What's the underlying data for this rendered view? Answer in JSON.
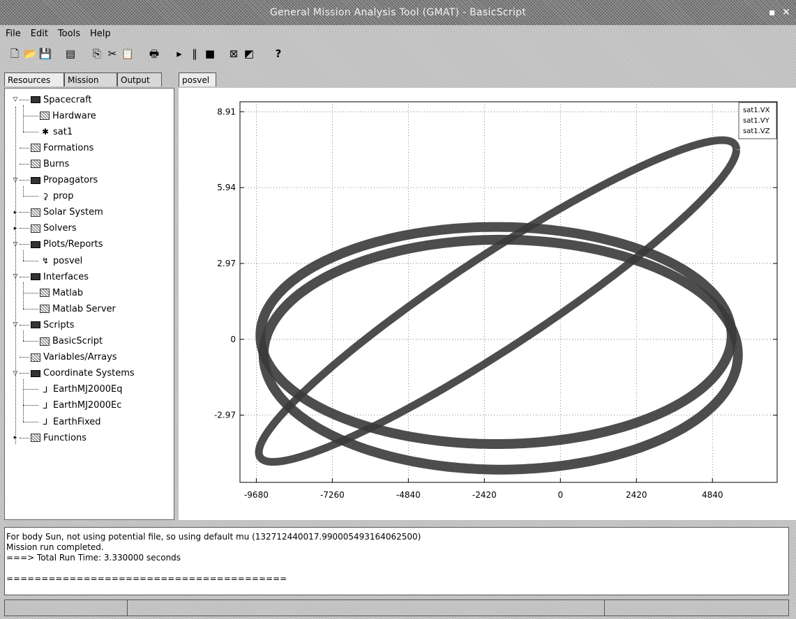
{
  "window": {
    "title": "General Mission Analysis Tool (GMAT) - BasicScript",
    "minimize_glyph": "▪",
    "close_glyph": "✕"
  },
  "menu": [
    "File",
    "Edit",
    "Tools",
    "Help"
  ],
  "toolbar": [
    {
      "icon": "new-file-icon",
      "glyph": "🗋"
    },
    {
      "icon": "open-folder-icon",
      "glyph": "📂"
    },
    {
      "icon": "save-icon",
      "glyph": "💾"
    },
    {
      "icon": "script-icon",
      "glyph": "▤"
    },
    {
      "icon": "copy-icon",
      "glyph": "⎘"
    },
    {
      "icon": "cut-icon",
      "glyph": "✂"
    },
    {
      "icon": "paste-icon",
      "glyph": "📋"
    },
    {
      "icon": "print-icon",
      "glyph": "🖶"
    },
    {
      "icon": "run-icon",
      "glyph": "▸"
    },
    {
      "icon": "pause-icon",
      "glyph": "‖"
    },
    {
      "icon": "stop-icon",
      "glyph": "■"
    },
    {
      "icon": "close-all-icon",
      "glyph": "⊠"
    },
    {
      "icon": "clear-icon",
      "glyph": "◩"
    },
    {
      "icon": "help-icon",
      "glyph": "?"
    }
  ],
  "left_tabs": [
    "Resources",
    "Mission",
    "Output"
  ],
  "active_left_tab": "Resources",
  "plot_tab": "posvel",
  "tree": [
    {
      "label": "Spacecraft",
      "level": 0,
      "state": "expanded",
      "icon": "folder-icon"
    },
    {
      "label": "Hardware",
      "level": 1,
      "state": "none",
      "icon": "hardware-icon"
    },
    {
      "label": "sat1",
      "level": 1,
      "state": "none",
      "icon": "satellite-icon"
    },
    {
      "label": "Formations",
      "level": 0,
      "state": "none",
      "icon": "formation-icon"
    },
    {
      "label": "Burns",
      "level": 0,
      "state": "none",
      "icon": "burn-icon"
    },
    {
      "label": "Propagators",
      "level": 0,
      "state": "expanded",
      "icon": "folder-icon"
    },
    {
      "label": "prop",
      "level": 1,
      "state": "none",
      "icon": "propagator-icon"
    },
    {
      "label": "Solar System",
      "level": 0,
      "state": "collapsed",
      "icon": "solar-system-icon"
    },
    {
      "label": "Solvers",
      "level": 0,
      "state": "collapsed",
      "icon": "solver-icon"
    },
    {
      "label": "Plots/Reports",
      "level": 0,
      "state": "expanded",
      "icon": "folder-icon"
    },
    {
      "label": "posvel",
      "level": 1,
      "state": "none",
      "icon": "xy-plot-icon"
    },
    {
      "label": "Interfaces",
      "level": 0,
      "state": "expanded",
      "icon": "folder-icon"
    },
    {
      "label": "Matlab",
      "level": 1,
      "state": "none",
      "icon": "matlab-icon"
    },
    {
      "label": "Matlab Server",
      "level": 1,
      "state": "none",
      "icon": "matlab-server-icon"
    },
    {
      "label": "Scripts",
      "level": 0,
      "state": "expanded",
      "icon": "folder-icon"
    },
    {
      "label": "BasicScript",
      "level": 1,
      "state": "none",
      "icon": "script-file-icon"
    },
    {
      "label": "Variables/Arrays",
      "level": 0,
      "state": "none",
      "icon": "variables-icon"
    },
    {
      "label": "Coordinate Systems",
      "level": 0,
      "state": "expanded",
      "icon": "folder-icon"
    },
    {
      "label": "EarthMJ2000Eq",
      "level": 1,
      "state": "none",
      "icon": "axes-icon"
    },
    {
      "label": "EarthMJ2000Ec",
      "level": 1,
      "state": "none",
      "icon": "axes-icon"
    },
    {
      "label": "EarthFixed",
      "level": 1,
      "state": "none",
      "icon": "axes-icon"
    },
    {
      "label": "Functions",
      "level": 0,
      "state": "collapsed",
      "icon": "functions-icon"
    }
  ],
  "chart_data": {
    "type": "line",
    "title": "",
    "xlabel": "",
    "ylabel": "",
    "xticks": [
      "-9680",
      "-7260",
      "-4840",
      "-2420",
      "0",
      "2420",
      "4840"
    ],
    "yticks": [
      "8.91",
      "5.94",
      "2.97",
      "0",
      "-2.97"
    ],
    "xlim": [
      -10200,
      6900
    ],
    "ylim": [
      -5.6,
      9.3
    ],
    "grid": true,
    "legend": {
      "position": "top-right",
      "entries": [
        "sat1.VX",
        "sat1.VY",
        "sat1.VZ"
      ]
    },
    "series": [
      {
        "name": "sat1.VX",
        "curve": "tilted-ellipse",
        "x_range": [
          -9600,
          5600
        ],
        "y_range": [
          -4.8,
          7.8
        ],
        "color": "#3a3a3a"
      },
      {
        "name": "sat1.VY",
        "curve": "wide-ellipse",
        "x_range": [
          -9550,
          5450
        ],
        "y_range": [
          -4.1,
          4.4
        ],
        "color": "#3a3a3a"
      },
      {
        "name": "sat1.VZ",
        "curve": "wide-ellipse",
        "x_range": [
          -9450,
          5650
        ],
        "y_range": [
          -5.1,
          3.9
        ],
        "color": "#3a3a3a"
      }
    ]
  },
  "log_lines": [
    "For body Sun, not using potential file, so using default mu (132712440017.990005493164062500)",
    "Mission run completed.",
    "===> Total Run Time: 3.330000 seconds",
    "",
    "========================================"
  ]
}
